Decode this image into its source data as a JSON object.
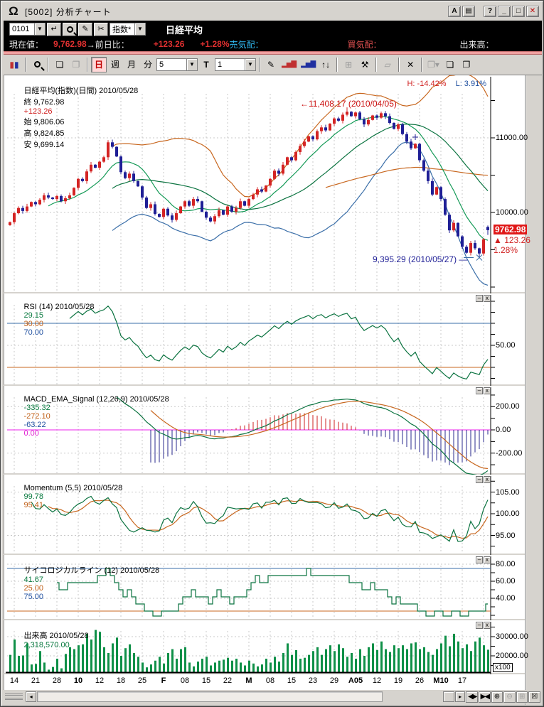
{
  "window": {
    "title": "[5002] 分析チャート",
    "logo_glyph": "Ω",
    "btn_a": "A",
    "btn_layout": "▤",
    "btn_help": "?",
    "btn_min": "_",
    "btn_max": "□",
    "btn_close": "✕"
  },
  "command_bar": {
    "code": "0101",
    "enter_icon": "↵",
    "category": "指数*",
    "name": "日経平均",
    "row2": {
      "cur_label": "現在値：",
      "price": "9,762.98",
      "prev_label": "→前日比：",
      "change": "+123.26",
      "change_pct": "+1.28%",
      "sell_label": "売気配：",
      "buy_label": "買気配：",
      "volume_label": "出来高："
    }
  },
  "toolbar": {
    "day": "日",
    "week": "週",
    "month": "月",
    "minute": "分",
    "combo_span": "5",
    "t_label": "T",
    "combo_bar": "1",
    "icons": {
      "pen": "✎",
      "scissors": "✂",
      "page1": "❏",
      "page2": "❐",
      "bars_red": "▂▅▇",
      "bars_blue": "▂▅▇",
      "updown": "↑↓",
      "grid": "⊞",
      "hammer": "⚒",
      "eraser": "▱",
      "delete": "✕",
      "save": "❐▾",
      "page3": "❏",
      "page4": "❐"
    }
  },
  "main_chart": {
    "title": "日経平均(指数)(日間) 2010/05/28",
    "close_label": "終",
    "close": "9,762.98",
    "change": "+123.26",
    "open_label": "始",
    "open": "9,806.06",
    "high_label": "高",
    "high": "9,824.85",
    "low_label": "安",
    "low": "9,699.14",
    "h_readout": "H: -14.42%",
    "l_readout": "L: 3.91%",
    "peak_annotation": "←11,408.17 (2010/04/05)",
    "low_annotation": "9,395.29 (2010/05/27) ―",
    "price_tag": "9762.98",
    "price_tag_change": "▲ 123.26",
    "price_tag_pct": "1.28%",
    "y_labels": [
      {
        "v": 11000,
        "t": "11000.00"
      },
      {
        "v": 10000,
        "t": "10000.00"
      }
    ]
  },
  "rsi": {
    "title": "RSI (14) 2010/05/28 ",
    "v1": "29.15",
    "v2": "30.00",
    "v3": "70.00",
    "y_labels": [
      {
        "v": 50,
        "t": "50.00"
      }
    ]
  },
  "macd": {
    "title": "MACD_EMA_Signal (12,26,9) 2010/05/28 ",
    "v1": "-335.32",
    "v2": "-272.10",
    "v3": "-63.22",
    "v4": "0.00",
    "y_labels": [
      {
        "v": 200,
        "t": "200.00"
      },
      {
        "v": 0,
        "t": "0.00"
      },
      {
        "v": -200,
        "t": "-200.00"
      }
    ]
  },
  "momentum": {
    "title": "Momentum (5,5) 2010/05/28 ",
    "v1": "99.78",
    "v2": "95.41",
    "y_labels": [
      {
        "v": 105,
        "t": "105.00"
      },
      {
        "v": 100,
        "t": "100.00"
      },
      {
        "v": 95,
        "t": "95.00"
      }
    ]
  },
  "psych": {
    "title": "サイコロジカルライン (12) 2010/05/28 ",
    "v1": "41.67",
    "v2": "25.00",
    "v3": "75.00",
    "y_labels": [
      {
        "v": 80,
        "t": "80.00"
      },
      {
        "v": 60,
        "t": "60.00"
      },
      {
        "v": 40,
        "t": "40.00"
      }
    ]
  },
  "volume_panel": {
    "title": "出来高 2010/05/28 ",
    "v1": "2,318,570.00",
    "multiplier": "x100",
    "y_labels": [
      {
        "v": 30000,
        "t": "30000.00"
      },
      {
        "v": 20000,
        "t": "20000.00"
      }
    ]
  },
  "xaxis": {
    "labels": [
      "14",
      "21",
      "28",
      "10",
      "12",
      "18",
      "25",
      "F",
      "08",
      "15",
      "22",
      "M",
      "08",
      "15",
      "23",
      "29",
      "A05",
      "12",
      "19",
      "26",
      "M10",
      "17"
    ],
    "bold": [
      0,
      0,
      0,
      1,
      0,
      0,
      0,
      1,
      0,
      0,
      0,
      1,
      0,
      0,
      0,
      0,
      1,
      0,
      0,
      0,
      1,
      0
    ]
  },
  "statusbar": {
    "left_arrow": "◂",
    "right_arrow": "▸",
    "expand": "◀▶",
    "shrink": "▶◀",
    "zoom_in": "⊕",
    "zoom_out": "⊖",
    "grid": "⊞",
    "close": "☒"
  },
  "panel_btns": {
    "min": "–",
    "close": "x"
  },
  "colors": {
    "up": "#d42424",
    "down": "#1f1f96",
    "green1": "#159a57",
    "green2": "#0b7340",
    "orange": "#c8671f",
    "blue": "#3a6ea8",
    "magenta": "#ee22ee",
    "volume": "#0f9048",
    "grid": "#c9c9c9",
    "hist_pos": "#cc2222",
    "hist_neg": "#28288c"
  },
  "chart_data": {
    "type": "candlestick-with-indicators",
    "instrument": "日経平均 (Nikkei 225 index, daily)",
    "date_last": "2010/05/28",
    "indicators_shown": [
      "Bollinger(25,2)",
      "MA10",
      "MA25",
      "MA75",
      "RSI(14)",
      "MACD(12,26,9)",
      "Momentum(5,5)",
      "Psychological(12)",
      "Volume x100"
    ],
    "last_candle": {
      "open": 9806.06,
      "high": 9824.85,
      "low": 9699.14,
      "close": 9762.98
    },
    "peak_high": 11408.17,
    "crash_low": 9395.29,
    "closes": [
      9870,
      9990,
      10060,
      10020,
      10080,
      10140,
      10110,
      10170,
      10230,
      10200,
      10180,
      10220,
      10150,
      10190,
      10230,
      10330,
      10450,
      10420,
      10550,
      10640,
      10600,
      10680,
      10740,
      10940,
      10880,
      10750,
      10540,
      10460,
      10520,
      10420,
      10350,
      10200,
      10060,
      10110,
      9980,
      9940,
      10050,
      9960,
      9900,
      9990,
      10080,
      10150,
      10090,
      10180,
      10150,
      10010,
      9930,
      9880,
      9950,
      10030,
      9970,
      10080,
      10010,
      10060,
      10150,
      10090,
      10180,
      10240,
      10310,
      10280,
      10360,
      10450,
      10560,
      10520,
      10640,
      10740,
      10700,
      10810,
      10890,
      10950,
      11020,
      10980,
      11090,
      11140,
      11100,
      11190,
      11260,
      11230,
      11310,
      11350,
      11290,
      11340,
      11250,
      11180,
      11240,
      11300,
      11270,
      11330,
      11290,
      11200,
      11120,
      11180,
      11050,
      10950,
      10860,
      10920,
      10700,
      10560,
      10420,
      10240,
      10340,
      10180,
      9970,
      9760,
      9860,
      9680,
      9540,
      9460,
      9590,
      9520,
      9450,
      9639.72,
      9762.98
    ],
    "volumes": [
      20500,
      28500,
      20000,
      20200,
      26500,
      15500,
      15800,
      22500,
      16500,
      12800,
      14200,
      18500,
      13500,
      21000,
      24500,
      23500,
      25500,
      26000,
      31500,
      28500,
      33500,
      32500,
      24500,
      21500,
      26500,
      29500,
      20000,
      24000,
      26000,
      21500,
      19500,
      16500,
      14000,
      15500,
      17500,
      19500,
      16000,
      21500,
      23500,
      18500,
      23500,
      24500,
      16500,
      14500,
      17000,
      18500,
      19500,
      15000,
      16500,
      17500,
      18000,
      19000,
      17500,
      18500,
      16500,
      15000,
      17500,
      16000,
      14500,
      15500,
      18500,
      16500,
      19500,
      17000,
      21500,
      26500,
      20500,
      23000,
      18500,
      19000,
      20500,
      22500,
      24500,
      20500,
      23500,
      25500,
      22500,
      26000,
      24000,
      19500,
      21500,
      18500,
      23500,
      20000,
      24500,
      26500,
      23000,
      27500,
      23500,
      22000,
      25500,
      24000,
      25500,
      23500,
      26500,
      27000,
      23500,
      24500,
      22000,
      20500,
      23500,
      26500,
      30500,
      25000,
      31500,
      27500,
      24000,
      26000,
      22500,
      27500,
      29500,
      25500,
      23186
    ],
    "main_axis": {
      "tick_step": 500,
      "labeled": [
        11000,
        10000
      ]
    },
    "rsi_levels": {
      "upper": 70,
      "lower": 30
    },
    "psych_levels": {
      "upper": 75,
      "lower": 25
    }
  }
}
